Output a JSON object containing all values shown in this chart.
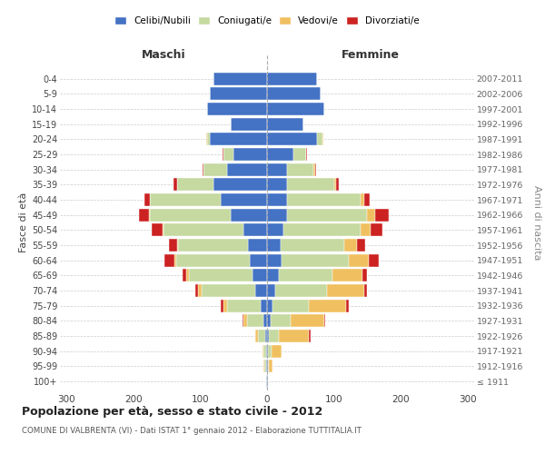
{
  "age_groups": [
    "100+",
    "95-99",
    "90-94",
    "85-89",
    "80-84",
    "75-79",
    "70-74",
    "65-69",
    "60-64",
    "55-59",
    "50-54",
    "45-49",
    "40-44",
    "35-39",
    "30-34",
    "25-29",
    "20-24",
    "15-19",
    "10-14",
    "5-9",
    "0-4"
  ],
  "birth_years": [
    "≤ 1911",
    "1912-1916",
    "1917-1921",
    "1922-1926",
    "1927-1931",
    "1932-1936",
    "1937-1941",
    "1942-1946",
    "1947-1951",
    "1952-1956",
    "1957-1961",
    "1962-1966",
    "1967-1971",
    "1972-1976",
    "1977-1981",
    "1982-1986",
    "1987-1991",
    "1992-1996",
    "1997-2001",
    "2002-2006",
    "2007-2011"
  ],
  "males": {
    "celibi": [
      1,
      2,
      2,
      3,
      5,
      10,
      18,
      22,
      26,
      28,
      35,
      55,
      70,
      80,
      60,
      50,
      85,
      55,
      90,
      85,
      80
    ],
    "coniugati": [
      0,
      2,
      3,
      10,
      25,
      50,
      80,
      95,
      110,
      105,
      120,
      120,
      105,
      55,
      35,
      15,
      5,
      0,
      0,
      0,
      0
    ],
    "vedovi": [
      0,
      1,
      2,
      5,
      5,
      5,
      5,
      4,
      3,
      2,
      2,
      2,
      1,
      0,
      0,
      0,
      1,
      0,
      0,
      0,
      0
    ],
    "divorziati": [
      0,
      0,
      0,
      0,
      2,
      5,
      5,
      6,
      15,
      12,
      15,
      15,
      8,
      5,
      2,
      1,
      0,
      0,
      0,
      0,
      0
    ]
  },
  "females": {
    "nubili": [
      1,
      2,
      2,
      3,
      5,
      8,
      12,
      18,
      22,
      20,
      25,
      30,
      30,
      30,
      30,
      40,
      75,
      55,
      85,
      80,
      75
    ],
    "coniugate": [
      0,
      1,
      5,
      15,
      30,
      55,
      78,
      80,
      100,
      95,
      115,
      120,
      110,
      70,
      40,
      18,
      8,
      0,
      0,
      0,
      0
    ],
    "vedove": [
      1,
      5,
      15,
      45,
      50,
      55,
      55,
      45,
      30,
      20,
      15,
      12,
      5,
      3,
      2,
      1,
      1,
      0,
      0,
      0,
      0
    ],
    "divorziate": [
      0,
      0,
      0,
      2,
      2,
      5,
      5,
      6,
      15,
      12,
      18,
      20,
      8,
      5,
      2,
      1,
      0,
      0,
      0,
      0,
      0
    ]
  },
  "colors": {
    "celibi": "#4472c4",
    "coniugati": "#c5d9a0",
    "vedovi": "#f0c060",
    "divorziati": "#cc2222"
  },
  "title": "Popolazione per età, sesso e stato civile - 2012",
  "subtitle": "COMUNE DI VALBRENTA (VI) - Dati ISTAT 1° gennaio 2012 - Elaborazione TUTTITALIA.IT",
  "xlabel_maschi": "Maschi",
  "xlabel_femmine": "Femmine",
  "ylabel": "Fasce di età",
  "ylabel2": "Anni di nascita",
  "legend_labels": [
    "Celibi/Nubili",
    "Coniugati/e",
    "Vedovi/e",
    "Divorziati/e"
  ],
  "xlim": 310,
  "background_color": "#ffffff",
  "grid_color": "#cccccc"
}
